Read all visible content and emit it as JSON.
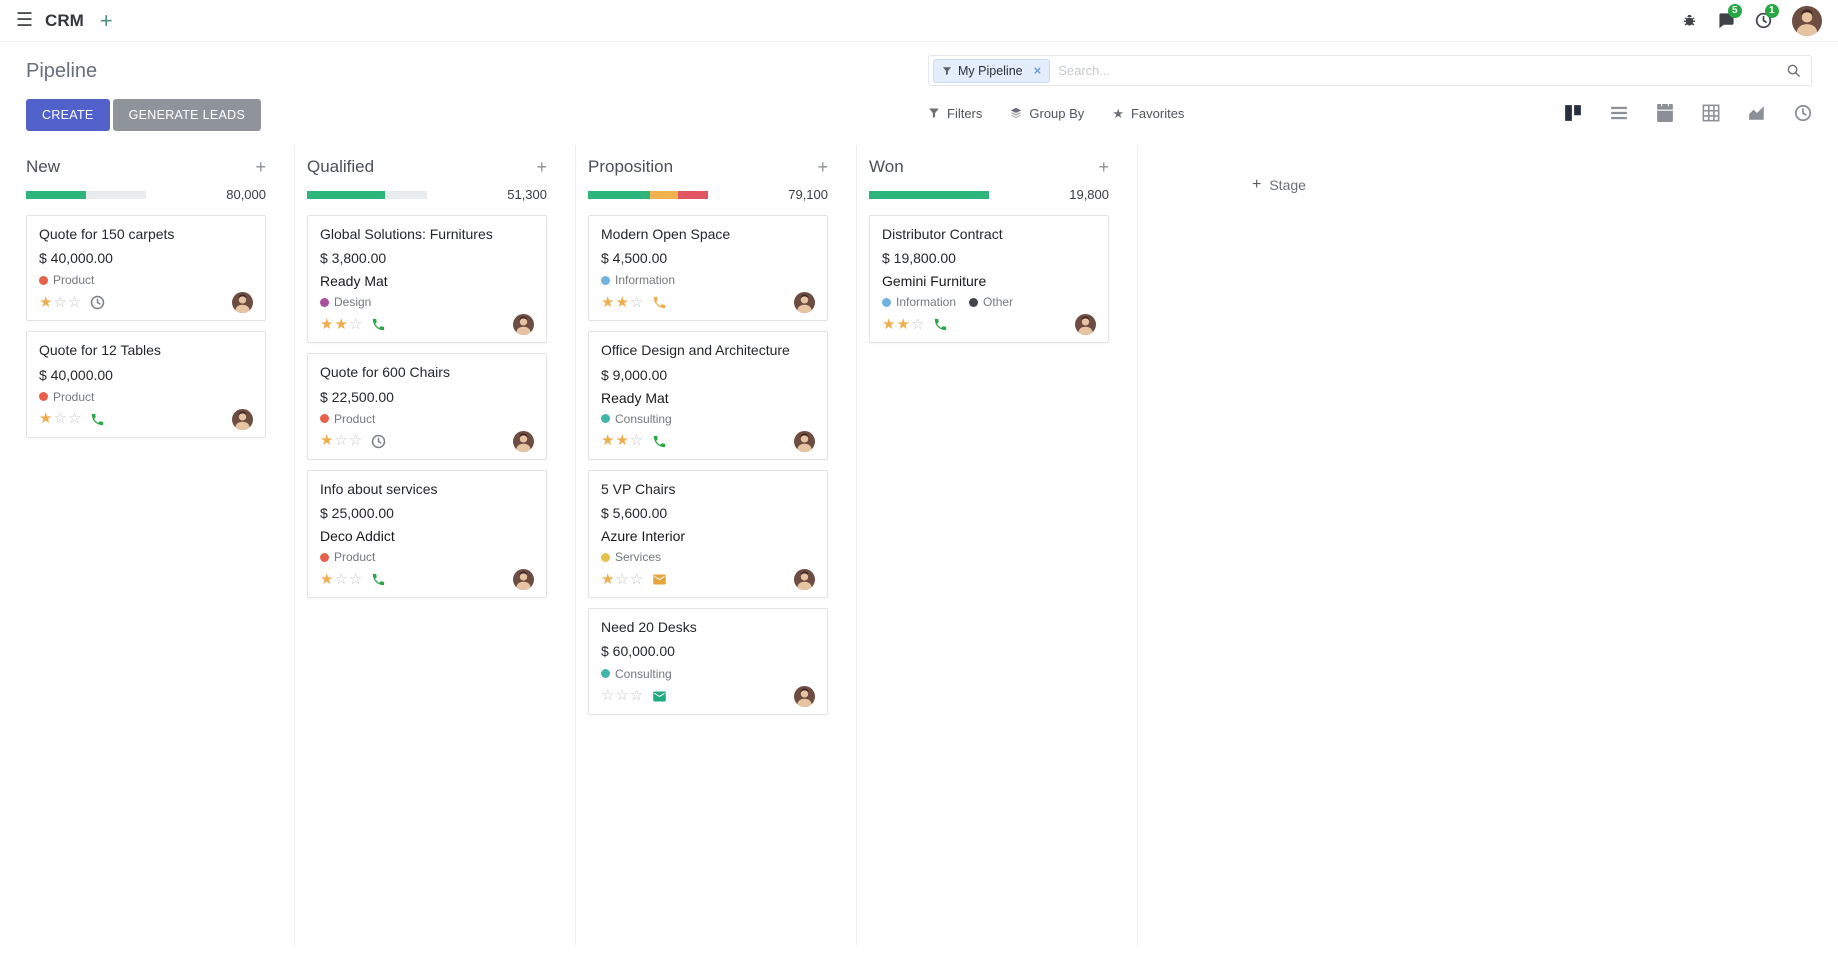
{
  "topbar": {
    "app_name": "CRM",
    "messages_badge": "5",
    "activities_badge": "1"
  },
  "control_panel": {
    "title": "Pipeline",
    "create_label": "CREATE",
    "generate_leads_label": "GENERATE LEADS",
    "search": {
      "facet": "My Pipeline",
      "placeholder": "Search..."
    },
    "menus": {
      "filters": "Filters",
      "group_by": "Group By",
      "favorites": "Favorites"
    },
    "view_switcher": {
      "active": "kanban",
      "views": [
        "kanban",
        "list",
        "calendar",
        "pivot",
        "graph",
        "activity"
      ]
    }
  },
  "colors": {
    "primary": "#5061c9",
    "secondary_button": "#8f939a",
    "badge_green": "#28a745",
    "progress_green": "#2eb57b",
    "progress_yellow": "#f0b24f",
    "progress_red": "#e25563",
    "star_gold": "#f0ad4e"
  },
  "kanban": {
    "add_stage_label": "Stage",
    "columns": [
      {
        "name": "New",
        "total": "80,000",
        "progress": [
          {
            "color": "#2eb57b",
            "pct": 50
          }
        ],
        "cards": [
          {
            "title": "Quote for 150 carpets",
            "amount": "$ 40,000.00",
            "tags": [
              {
                "label": "Product",
                "color": "#e8604c"
              }
            ],
            "stars": 1,
            "activity": {
              "type": "clock",
              "color": "#7c8085"
            }
          },
          {
            "title": "Quote for 12 Tables",
            "amount": "$ 40,000.00",
            "tags": [
              {
                "label": "Product",
                "color": "#e8604c"
              }
            ],
            "stars": 1,
            "activity": {
              "type": "phone",
              "color": "#28a745"
            }
          }
        ]
      },
      {
        "name": "Qualified",
        "total": "51,300",
        "progress": [
          {
            "color": "#2eb57b",
            "pct": 65
          }
        ],
        "cards": [
          {
            "title": "Global Solutions: Furnitures",
            "amount": "$ 3,800.00",
            "partner": "Ready Mat",
            "tags": [
              {
                "label": "Design",
                "color": "#a94f9e"
              }
            ],
            "stars": 2,
            "activity": {
              "type": "phone",
              "color": "#28a745"
            }
          },
          {
            "title": "Quote for 600 Chairs",
            "amount": "$ 22,500.00",
            "tags": [
              {
                "label": "Product",
                "color": "#e8604c"
              }
            ],
            "stars": 1,
            "activity": {
              "type": "clock",
              "color": "#7c8085"
            }
          },
          {
            "title": "Info about services",
            "amount": "$ 25,000.00",
            "partner": "Deco Addict",
            "tags": [
              {
                "label": "Product",
                "color": "#e8604c"
              }
            ],
            "stars": 1,
            "activity": {
              "type": "phone",
              "color": "#28a745"
            }
          }
        ]
      },
      {
        "name": "Proposition",
        "total": "79,100",
        "progress": [
          {
            "color": "#2eb57b",
            "pct": 52
          },
          {
            "color": "#f0b24f",
            "pct": 23
          },
          {
            "color": "#e25563",
            "pct": 25
          }
        ],
        "cards": [
          {
            "title": "Modern Open Space",
            "amount": "$ 4,500.00",
            "tags": [
              {
                "label": "Information",
                "color": "#6fb3e0"
              }
            ],
            "stars": 2,
            "activity": {
              "type": "phone",
              "color": "#f0ad4e"
            }
          },
          {
            "title": "Office Design and Architecture",
            "amount": "$ 9,000.00",
            "partner": "Ready Mat",
            "tags": [
              {
                "label": "Consulting",
                "color": "#3fb6ac"
              }
            ],
            "stars": 2,
            "activity": {
              "type": "phone",
              "color": "#28a745"
            }
          },
          {
            "title": "5 VP Chairs",
            "amount": "$ 5,600.00",
            "partner": "Azure Interior",
            "tags": [
              {
                "label": "Services",
                "color": "#e5c04b"
              }
            ],
            "stars": 1,
            "activity": {
              "type": "envelope",
              "color": "#e8a33d"
            }
          },
          {
            "title": "Need 20 Desks",
            "amount": "$ 60,000.00",
            "tags": [
              {
                "label": "Consulting",
                "color": "#3fb6ac"
              }
            ],
            "stars": 0,
            "activity": {
              "type": "envelope",
              "color": "#1fa97d"
            }
          }
        ]
      },
      {
        "name": "Won",
        "total": "19,800",
        "progress": [
          {
            "color": "#2eb57b",
            "pct": 100
          }
        ],
        "cards": [
          {
            "title": "Distributor Contract",
            "amount": "$ 19,800.00",
            "partner": "Gemini Furniture",
            "tags": [
              {
                "label": "Information",
                "color": "#6fb3e0"
              },
              {
                "label": "Other",
                "color": "#41454b"
              }
            ],
            "stars": 2,
            "activity": {
              "type": "phone",
              "color": "#28a745"
            }
          }
        ]
      }
    ]
  }
}
